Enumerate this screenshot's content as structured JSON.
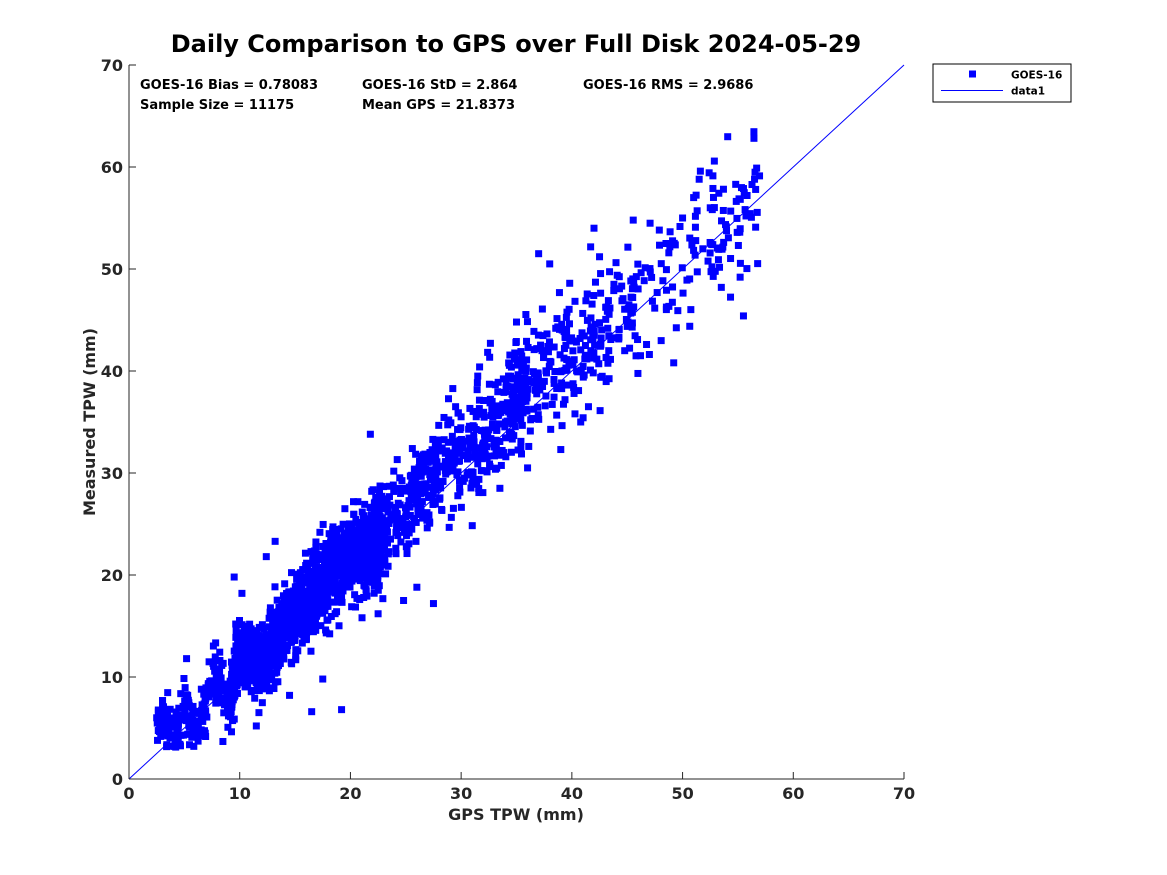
{
  "chart_data": {
    "type": "scatter",
    "title": "Daily Comparison to GPS over Full Disk 2024-05-29",
    "xlabel": "GPS TPW (mm)",
    "ylabel": "Measured TPW (mm)",
    "xlim": [
      0,
      70
    ],
    "ylim": [
      0,
      70
    ],
    "xticks": [
      0,
      10,
      20,
      30,
      40,
      50,
      60,
      70
    ],
    "yticks": [
      0,
      10,
      20,
      30,
      40,
      50,
      60,
      70
    ],
    "grid": false,
    "legend_position": "outside-top-right",
    "stats": [
      "GOES-16 Bias = 0.78083",
      "GOES-16 StD = 2.864",
      "GOES-16 RMS = 2.9686",
      "Sample Size = 11175",
      "Mean GPS = 21.8373"
    ],
    "series": [
      {
        "name": "GOES-16",
        "kind": "scatter",
        "marker": "square",
        "color": "#0000ff",
        "cloud_template": [
          [
            3,
            6.2
          ],
          [
            4,
            4.2
          ],
          [
            5,
            7
          ],
          [
            6,
            4.5
          ],
          [
            7,
            8
          ],
          [
            8,
            10.5
          ],
          [
            9,
            7
          ],
          [
            10,
            13
          ],
          [
            12,
            11
          ],
          [
            13,
            13
          ],
          [
            14,
            15
          ],
          [
            15,
            16
          ],
          [
            16,
            17
          ],
          [
            17,
            19
          ],
          [
            18,
            20
          ],
          [
            19,
            21
          ],
          [
            20,
            22
          ],
          [
            21,
            22.5
          ],
          [
            22,
            23
          ],
          [
            23,
            24
          ],
          [
            24,
            25
          ],
          [
            25,
            26.5
          ],
          [
            26,
            28
          ],
          [
            27,
            29.5
          ],
          [
            28,
            30.5
          ],
          [
            29,
            31
          ],
          [
            30,
            32
          ],
          [
            31,
            33
          ],
          [
            32,
            34
          ],
          [
            33,
            35
          ],
          [
            34,
            36
          ],
          [
            35,
            37
          ],
          [
            36,
            38.5
          ],
          [
            37,
            40
          ],
          [
            38,
            41
          ],
          [
            39,
            41.5
          ],
          [
            40,
            42
          ],
          [
            41,
            43
          ],
          [
            42,
            44
          ],
          [
            43,
            45
          ],
          [
            44,
            46
          ],
          [
            45,
            46.5
          ],
          [
            46,
            47
          ],
          [
            47,
            48
          ],
          [
            48,
            49
          ],
          [
            49,
            50
          ],
          [
            50,
            51
          ],
          [
            51,
            52
          ],
          [
            52,
            53
          ],
          [
            53,
            53.5
          ],
          [
            54,
            54
          ],
          [
            55,
            55
          ],
          [
            56,
            56.5
          ]
        ],
        "outliers": [
          [
            2.5,
            6.0
          ],
          [
            4.6,
            3.4
          ],
          [
            5.2,
            11.8
          ],
          [
            9.5,
            19.8
          ],
          [
            10.2,
            18.2
          ],
          [
            11.5,
            5.2
          ],
          [
            12.4,
            21.8
          ],
          [
            13.2,
            23.3
          ],
          [
            14.5,
            8.2
          ],
          [
            16.5,
            6.6
          ],
          [
            17.5,
            9.8
          ],
          [
            19.2,
            6.8
          ],
          [
            19.5,
            26.5
          ],
          [
            21.8,
            33.8
          ],
          [
            22.5,
            16.2
          ],
          [
            24.8,
            17.5
          ],
          [
            26,
            18.8
          ],
          [
            27.5,
            17.2
          ],
          [
            29.5,
            36.5
          ],
          [
            31.5,
            39.5
          ],
          [
            33.5,
            28.5
          ],
          [
            35,
            44.8
          ],
          [
            36,
            30.5
          ],
          [
            37,
            51.5
          ],
          [
            38,
            50.5
          ],
          [
            39,
            32.3
          ],
          [
            40.8,
            35
          ],
          [
            41.5,
            36.5
          ],
          [
            42,
            54
          ],
          [
            42.5,
            51.2
          ],
          [
            43.8,
            48.5
          ],
          [
            46.2,
            41.5
          ],
          [
            48.5,
            52.5
          ],
          [
            49.2,
            40.8
          ],
          [
            50,
            55
          ],
          [
            51,
            57
          ],
          [
            51.5,
            58.8
          ],
          [
            52.5,
            56
          ],
          [
            53.5,
            48.2
          ],
          [
            54.8,
            58.3
          ],
          [
            55.2,
            49.2
          ],
          [
            55.5,
            45.4
          ],
          [
            56.5,
            58.8
          ],
          [
            56.6,
            57.8
          ]
        ]
      },
      {
        "name": "data1",
        "kind": "line",
        "color": "#0000ff",
        "x": [
          0,
          70
        ],
        "y": [
          0,
          70
        ]
      }
    ]
  }
}
